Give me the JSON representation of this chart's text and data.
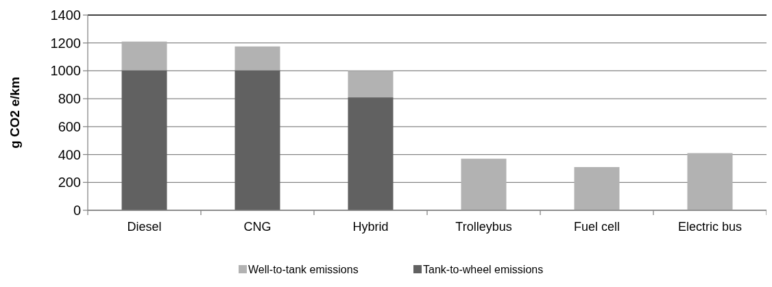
{
  "chart_data": {
    "type": "bar",
    "stacked": true,
    "ylabel": "g CO2 e/km",
    "categories": [
      "Diesel",
      "CNG",
      "Hybrid",
      "Trolleybus",
      "Fuel cell",
      "Electric bus"
    ],
    "series": [
      {
        "name": "Tank-to-wheel emissions",
        "color": "#616161",
        "values": [
          1005,
          1005,
          810,
          0,
          0,
          0
        ]
      },
      {
        "name": "Well-to-tank emissions",
        "color": "#b2b2b2",
        "values": [
          205,
          170,
          190,
          370,
          310,
          410
        ]
      }
    ],
    "ylim": [
      0,
      1400
    ],
    "yticks": [
      0,
      200,
      400,
      600,
      800,
      1000,
      1200,
      1400
    ],
    "grid": "y",
    "legend": "bottom"
  }
}
